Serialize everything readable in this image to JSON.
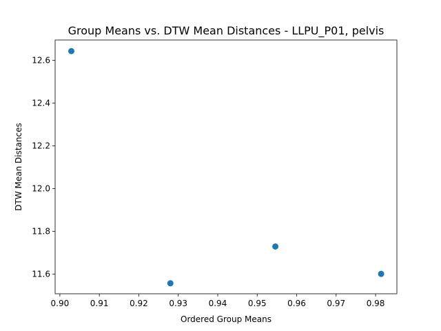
{
  "chart_data": {
    "type": "scatter",
    "title": "Group Means vs. DTW Mean Distances - LLPU_P01, pelvis",
    "xlabel": "Ordered Group Means",
    "ylabel": "DTW Mean Distances",
    "xlim": [
      0.8988,
      0.9854
    ],
    "ylim": [
      11.508,
      12.695
    ],
    "x_ticks": [
      0.9,
      0.91,
      0.92,
      0.93,
      0.94,
      0.95,
      0.96,
      0.97,
      0.98
    ],
    "x_tick_labels": [
      "0.90",
      "0.91",
      "0.92",
      "0.93",
      "0.94",
      "0.95",
      "0.96",
      "0.97",
      "0.98"
    ],
    "y_ticks": [
      11.6,
      11.8,
      12.0,
      12.2,
      12.4,
      12.6
    ],
    "y_tick_labels": [
      "11.6",
      "11.8",
      "12.0",
      "12.2",
      "12.4",
      "12.6"
    ],
    "grid": false,
    "marker_color": "#1f77b4",
    "x": [
      0.9029,
      0.928,
      0.9546,
      0.9814
    ],
    "y": [
      12.643,
      11.557,
      11.729,
      11.601
    ]
  }
}
